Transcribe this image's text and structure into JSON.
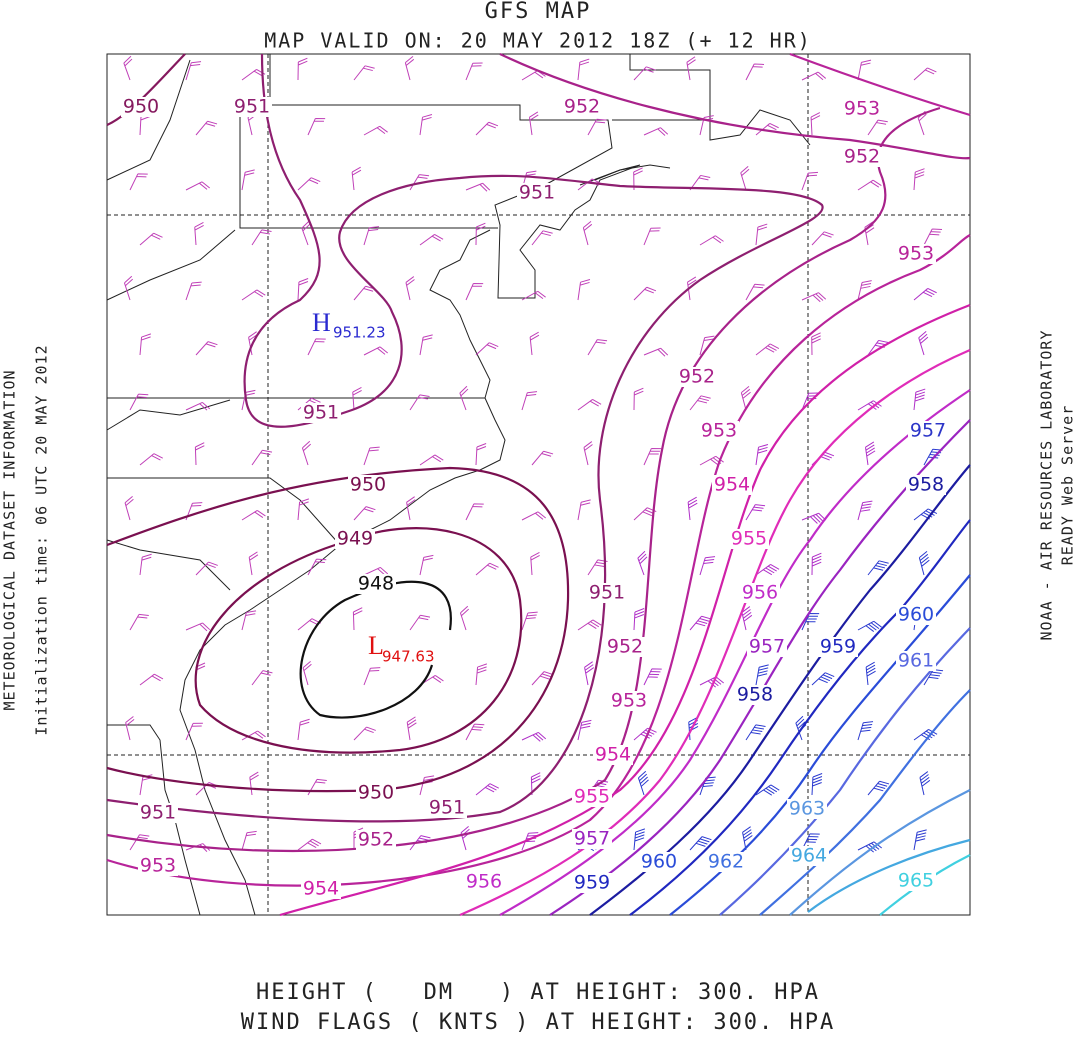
{
  "header": {
    "title": "GFS MAP",
    "subtitle": "MAP VALID ON: 20 MAY 2012 18Z (+ 12 HR)"
  },
  "left_text": [
    "METEOROLOGICAL DATASET INFORMATION",
    "Initialization time: 06 UTC 20 MAY 2012"
  ],
  "right_text": [
    "NOAA - AIR RESOURCES LABORATORY",
    "READY Web Server"
  ],
  "footer": [
    "HEIGHT (   DM   ) AT HEIGHT: 300. HPA",
    "WIND FLAGS ( KNTS ) AT HEIGHT: 300. HPA"
  ],
  "centers": [
    {
      "symbol": "H",
      "value": "951.23",
      "color": "#2a2ad0"
    },
    {
      "symbol": "L",
      "value": "947.63",
      "color": "#e01010"
    }
  ],
  "contour_labels": [
    {
      "label": "950",
      "color": "#85195e"
    },
    {
      "label": "951",
      "color": "#8e1f70"
    },
    {
      "label": "952",
      "color": "#a8228a"
    },
    {
      "label": "953",
      "color": "#b8249a"
    },
    {
      "label": "952",
      "color": "#a8228a"
    },
    {
      "label": "951",
      "color": "#8e1f70"
    },
    {
      "label": "953",
      "color": "#b8249a"
    },
    {
      "label": "952",
      "color": "#a8228a"
    },
    {
      "label": "951",
      "color": "#8e1f70"
    },
    {
      "label": "953",
      "color": "#b8249a"
    },
    {
      "label": "957",
      "color": "#2c35c8"
    },
    {
      "label": "954",
      "color": "#d020a8"
    },
    {
      "label": "958",
      "color": "#1c1ca0"
    },
    {
      "label": "950",
      "color": "#7a1050"
    },
    {
      "label": "949",
      "color": "#7a1050"
    },
    {
      "label": "955",
      "color": "#e02cb8"
    },
    {
      "label": "951",
      "color": "#8e1f70"
    },
    {
      "label": "956",
      "color": "#c02cc8"
    },
    {
      "label": "948",
      "color": "#111111"
    },
    {
      "label": "960",
      "color": "#2a4cd8"
    },
    {
      "label": "952",
      "color": "#a8228a"
    },
    {
      "label": "957",
      "color": "#9a24c0"
    },
    {
      "label": "959",
      "color": "#2028c0"
    },
    {
      "label": "961",
      "color": "#5868e0"
    },
    {
      "label": "953",
      "color": "#b8249a"
    },
    {
      "label": "958",
      "color": "#1c1ca0"
    },
    {
      "label": "954",
      "color": "#d020a8"
    },
    {
      "label": "950",
      "color": "#7a1050"
    },
    {
      "label": "951",
      "color": "#8e1f70"
    },
    {
      "label": "951",
      "color": "#8e1f70"
    },
    {
      "label": "955",
      "color": "#e02cb8"
    },
    {
      "label": "963",
      "color": "#5a96e0"
    },
    {
      "label": "952",
      "color": "#a8228a"
    },
    {
      "label": "957",
      "color": "#9a24c0"
    },
    {
      "label": "953",
      "color": "#b8249a"
    },
    {
      "label": "964",
      "color": "#44a8e0"
    },
    {
      "label": "960",
      "color": "#2a4cd8"
    },
    {
      "label": "962",
      "color": "#4070e0"
    },
    {
      "label": "956",
      "color": "#c02cc8"
    },
    {
      "label": "959",
      "color": "#2028c0"
    },
    {
      "label": "954",
      "color": "#d020a8"
    },
    {
      "label": "965",
      "color": "#40d0e0"
    }
  ]
}
